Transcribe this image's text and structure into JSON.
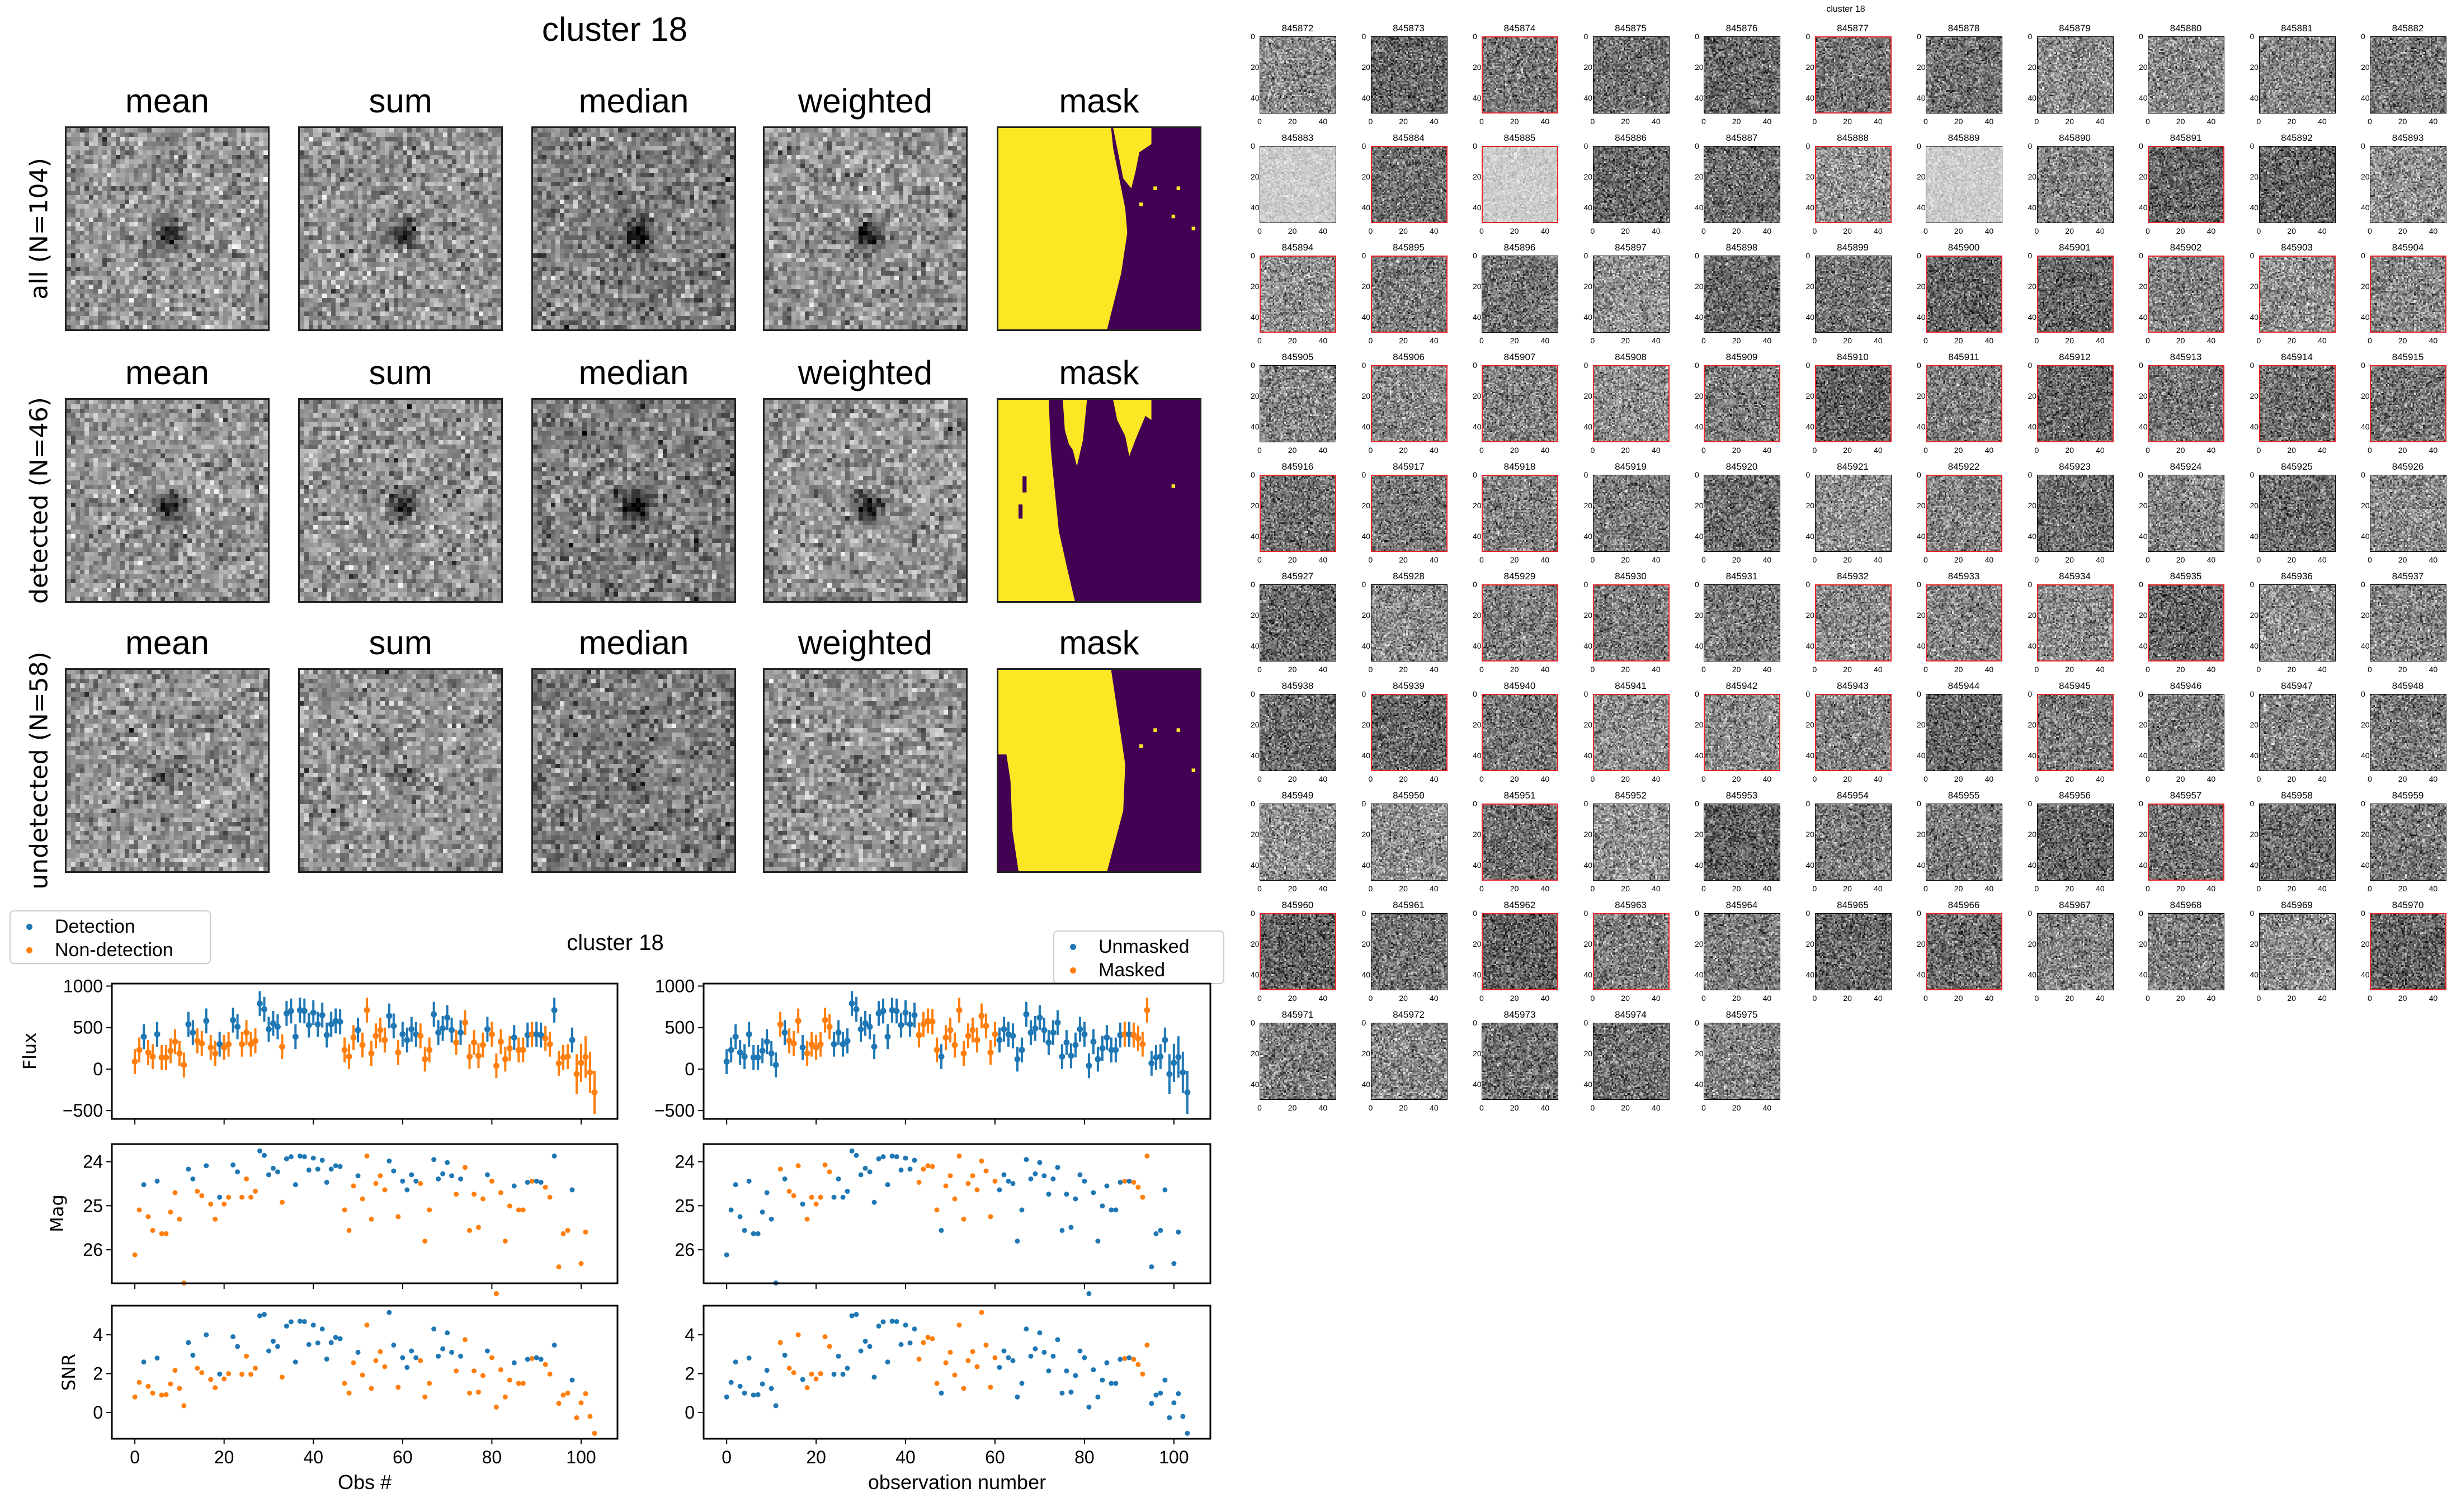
{
  "figure_title": "cluster 18",
  "stack_panels": {
    "column_titles": [
      "mean",
      "sum",
      "median",
      "weighted",
      "mask"
    ],
    "row_labels": [
      "all (N=104)",
      "detected (N=46)",
      "undetected (N=58)"
    ],
    "mask_colors": {
      "true": "#fde725",
      "false": "#440154"
    }
  },
  "lightcurve": {
    "title": "cluster 18",
    "legend_left": [
      "Detection",
      "Non-detection"
    ],
    "legend_right": [
      "Unmasked",
      "Masked"
    ],
    "colors": {
      "blue": "#1f77b4",
      "orange": "#ff7f0e"
    }
  },
  "chart_data": [
    {
      "type": "scatter",
      "panels": [
        "Flux",
        "Mag",
        "SNR"
      ],
      "ylabels": [
        "Flux",
        "Mag",
        "SNR"
      ],
      "xlabel_left": "Obs #",
      "xlabel_right": "observation number",
      "x_ticks": [
        "0",
        "20",
        "40",
        "60",
        "80",
        "100"
      ],
      "flux_ticks": [
        "-500",
        "0",
        "500",
        "1000"
      ],
      "mag_ticks": [
        "24",
        "25",
        "26"
      ],
      "snr_ticks": [
        "0",
        "2",
        "4"
      ],
      "xlim": [
        -5.15,
        108.15
      ],
      "flux_ylim": [
        -600,
        1030
      ],
      "mag_ylim": [
        26.76,
        23.6
      ],
      "snr_ylim": [
        -1.35,
        5.5
      ],
      "mag_zeropoint": 31.0,
      "flux": [
        90,
        230,
        390,
        200,
        150,
        420,
        140,
        140,
        220,
        330,
        190,
        50,
        540,
        440,
        340,
        310,
        580,
        260,
        190,
        300,
        260,
        300,
        590,
        510,
        300,
        440,
        300,
        340,
        790,
        720,
        480,
        550,
        510,
        270,
        670,
        700,
        390,
        710,
        700,
        530,
        680,
        540,
        650,
        410,
        540,
        580,
        570,
        230,
        150,
        380,
        470,
        290,
        710,
        190,
        400,
        470,
        350,
        640,
        520,
        200,
        420,
        350,
        480,
        420,
        400,
        120,
        230,
        660,
        440,
        490,
        620,
        470,
        320,
        440,
        560,
        150,
        320,
        160,
        290,
        480,
        420,
        40,
        330,
        120,
        250,
        380,
        230,
        230,
        410,
        420,
        420,
        410,
        370,
        300,
        710,
        70,
        140,
        150,
        350,
        -60,
        75,
        145,
        -40,
        -280
      ],
      "flux_err": [
        150,
        150,
        150,
        150,
        150,
        150,
        150,
        150,
        150,
        150,
        150,
        150,
        150,
        150,
        150,
        150,
        150,
        150,
        150,
        150,
        150,
        150,
        150,
        150,
        150,
        150,
        150,
        150,
        150,
        150,
        150,
        150,
        150,
        150,
        150,
        150,
        150,
        150,
        150,
        150,
        150,
        150,
        150,
        150,
        150,
        150,
        150,
        150,
        150,
        150,
        150,
        150,
        150,
        150,
        150,
        150,
        150,
        150,
        150,
        150,
        150,
        150,
        150,
        150,
        150,
        150,
        150,
        150,
        150,
        150,
        150,
        150,
        150,
        150,
        150,
        150,
        150,
        150,
        150,
        150,
        150,
        150,
        150,
        150,
        150,
        150,
        150,
        150,
        150,
        150,
        150,
        150,
        150,
        150,
        150,
        150,
        150,
        150,
        150,
        240,
        230,
        250,
        250,
        260
      ],
      "snr": [
        0.8,
        1.55,
        2.6,
        1.35,
        1.0,
        2.8,
        0.9,
        0.92,
        1.47,
        2.17,
        1.24,
        0.35,
        3.6,
        2.95,
        2.28,
        2.05,
        4.0,
        1.7,
        1.28,
        1.98,
        1.73,
        2.0,
        3.9,
        3.4,
        1.97,
        2.9,
        1.97,
        2.28,
        4.98,
        5.05,
        3.17,
        3.67,
        3.4,
        1.82,
        4.45,
        4.67,
        2.6,
        4.7,
        4.68,
        3.5,
        4.5,
        3.58,
        4.3,
        2.75,
        3.6,
        3.87,
        3.8,
        1.5,
        1.0,
        2.56,
        3.1,
        1.93,
        4.5,
        1.24,
        2.67,
        3.13,
        2.36,
        5.15,
        3.47,
        1.3,
        2.82,
        2.32,
        3.17,
        2.82,
        2.67,
        0.8,
        1.5,
        4.3,
        2.9,
        3.28,
        4.1,
        3.1,
        2.14,
        2.9,
        3.75,
        1.0,
        2.14,
        1.05,
        1.9,
        3.17,
        2.82,
        0.28,
        2.2,
        0.8,
        1.67,
        2.56,
        1.5,
        1.5,
        2.74,
        2.78,
        2.82,
        2.74,
        2.47,
        1.98,
        3.47,
        0.47,
        0.9,
        1.0,
        1.67,
        -0.27,
        0.5,
        0.97,
        -0.2,
        -1.07
      ],
      "detected_obs": [
        2,
        5,
        12,
        13,
        16,
        19,
        22,
        23,
        28,
        29,
        30,
        31,
        32,
        34,
        35,
        36,
        37,
        38,
        39,
        40,
        41,
        42,
        43,
        44,
        45,
        46,
        50,
        57,
        58,
        60,
        61,
        62,
        63,
        67,
        68,
        69,
        70,
        71,
        73,
        79,
        85,
        88,
        90,
        91,
        94,
        98
      ],
      "masked_obs": [
        12,
        14,
        15,
        16,
        18,
        19,
        20,
        21,
        22,
        23,
        43,
        44,
        45,
        46,
        47,
        49,
        50,
        51,
        52,
        53,
        54,
        55,
        56,
        57,
        58,
        59,
        60,
        89,
        91,
        92,
        93,
        94
      ]
    }
  ],
  "cutouts": {
    "title": "cluster 18",
    "tick_labels": [
      "0",
      "20",
      "40"
    ],
    "highlight_color": "#e8262a",
    "light_ids": [
      "845883",
      "845885",
      "845889"
    ],
    "ids": [
      "845872",
      "845873",
      "845874",
      "845875",
      "845876",
      "845877",
      "845878",
      "845879",
      "845880",
      "845881",
      "845882",
      "845883",
      "845884",
      "845885",
      "845886",
      "845887",
      "845888",
      "845889",
      "845890",
      "845891",
      "845892",
      "845893",
      "845894",
      "845895",
      "845896",
      "845897",
      "845898",
      "845899",
      "845900",
      "845901",
      "845902",
      "845903",
      "845904",
      "845905",
      "845906",
      "845907",
      "845908",
      "845909",
      "845910",
      "845911",
      "845912",
      "845913",
      "845914",
      "845915",
      "845916",
      "845917",
      "845918",
      "845919",
      "845920",
      "845921",
      "845922",
      "845923",
      "845924",
      "845925",
      "845926",
      "845927",
      "845928",
      "845929",
      "845930",
      "845931",
      "845932",
      "845933",
      "845934",
      "845935",
      "845936",
      "845937",
      "845938",
      "845939",
      "845940",
      "845941",
      "845942",
      "845943",
      "845944",
      "845945",
      "845946",
      "845947",
      "845948",
      "845949",
      "845950",
      "845951",
      "845952",
      "845953",
      "845954",
      "845955",
      "845956",
      "845957",
      "845958",
      "845959",
      "845960",
      "845961",
      "845962",
      "845963",
      "845964",
      "845965",
      "845966",
      "845967",
      "845968",
      "845969",
      "845970",
      "845971",
      "845972",
      "845973",
      "845974",
      "845975"
    ]
  }
}
